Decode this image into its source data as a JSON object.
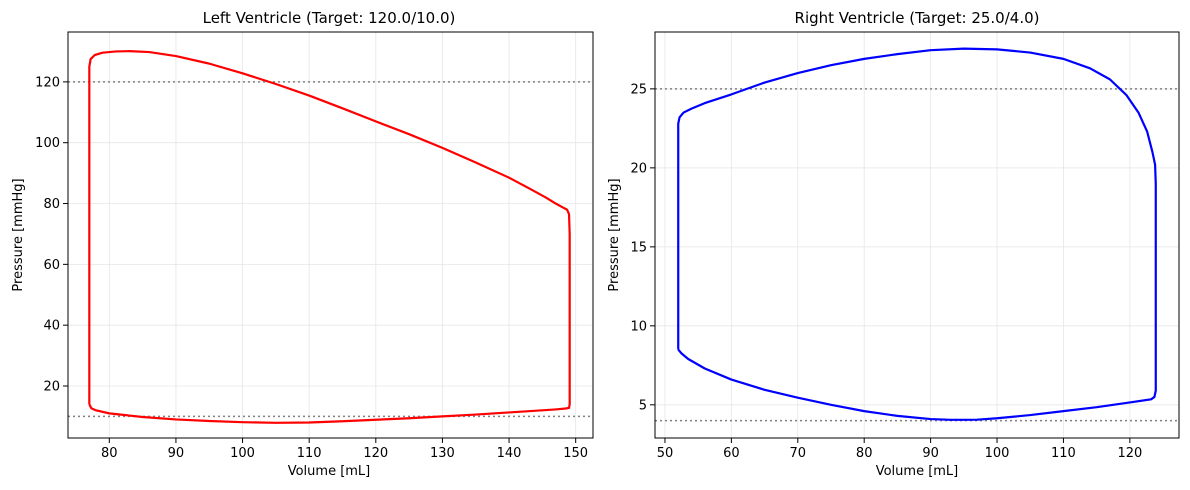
{
  "chart_data": [
    {
      "type": "line",
      "title": "Left Ventricle (Target: 120.0/10.0)",
      "xlabel": "Volume [mL]",
      "ylabel": "Pressure [mmHg]",
      "xlim": [
        73.8,
        152.6
      ],
      "ylim": [
        2.9,
        136.4
      ],
      "xticks": [
        80,
        90,
        100,
        110,
        120,
        130,
        140,
        150
      ],
      "yticks": [
        20,
        40,
        60,
        80,
        100,
        120
      ],
      "grid": true,
      "reference_lines": [
        120,
        10
      ],
      "reference_color": "#808080",
      "series": [
        {
          "color": "#ff0000",
          "x": [
            77.0,
            77.0,
            77.0,
            77.0,
            77.0,
            77.2,
            77.8,
            79.0,
            81.0,
            83.0,
            86.0,
            90.0,
            95.0,
            100.0,
            105.0,
            110.0,
            115.0,
            120.0,
            125.0,
            130.0,
            135.0,
            140.0,
            143.0,
            145.5,
            147.0,
            148.0,
            148.7,
            149.0,
            149.1,
            149.1,
            149.1,
            149.1,
            149.0,
            148.5,
            147.0,
            145.0,
            140.0,
            135.0,
            130.0,
            125.0,
            120.0,
            115.0,
            110.0,
            105.0,
            100.0,
            95.0,
            90.0,
            85.0,
            80.0,
            78.0,
            77.3,
            77.0
          ],
          "y": [
            14.0,
            40.0,
            80.0,
            120.0,
            125.0,
            127.5,
            128.8,
            129.6,
            130.0,
            130.1,
            129.8,
            128.5,
            126.0,
            122.8,
            119.3,
            115.5,
            111.3,
            107.0,
            102.8,
            98.3,
            93.5,
            88.5,
            85.0,
            82.0,
            80.0,
            78.8,
            78.0,
            76.5,
            70.0,
            50.0,
            30.0,
            14.0,
            12.8,
            12.6,
            12.3,
            12.0,
            11.3,
            10.6,
            10.0,
            9.4,
            8.9,
            8.4,
            8.0,
            7.9,
            8.1,
            8.5,
            9.0,
            9.8,
            11.0,
            12.0,
            12.7,
            14.0
          ]
        }
      ]
    },
    {
      "type": "line",
      "title": "Right Ventricle (Target: 25.0/4.0)",
      "xlabel": "Volume [mL]",
      "ylabel": "Pressure [mmHg]",
      "xlim": [
        48.5,
        127.4
      ],
      "ylim": [
        2.9,
        28.6
      ],
      "xticks": [
        50,
        60,
        70,
        80,
        90,
        100,
        110,
        120
      ],
      "yticks": [
        5,
        10,
        15,
        20,
        25
      ],
      "grid": true,
      "reference_lines": [
        25,
        4
      ],
      "reference_color": "#808080",
      "series": [
        {
          "color": "#0000ff",
          "x": [
            52.0,
            52.0,
            52.0,
            52.0,
            52.2,
            52.8,
            54.0,
            56.0,
            60.0,
            65.0,
            70.0,
            75.0,
            80.0,
            85.0,
            90.0,
            95.0,
            100.0,
            105.0,
            110.0,
            114.0,
            117.0,
            119.5,
            121.3,
            122.6,
            123.4,
            123.8,
            123.9,
            123.9,
            123.9,
            123.9,
            123.9,
            123.7,
            123.2,
            120.0,
            115.0,
            110.0,
            105.0,
            100.0,
            97.0,
            95.0,
            93.0,
            90.0,
            85.0,
            80.0,
            75.0,
            70.0,
            65.0,
            60.0,
            56.0,
            53.5,
            52.5,
            52.1,
            52.0
          ],
          "y": [
            8.5,
            12.0,
            18.0,
            22.8,
            23.2,
            23.5,
            23.75,
            24.1,
            24.65,
            25.4,
            26.0,
            26.5,
            26.9,
            27.2,
            27.45,
            27.55,
            27.5,
            27.3,
            26.9,
            26.3,
            25.6,
            24.6,
            23.5,
            22.3,
            21.0,
            20.2,
            19.0,
            15.0,
            10.0,
            7.0,
            5.9,
            5.5,
            5.35,
            5.15,
            4.85,
            4.6,
            4.35,
            4.15,
            4.06,
            4.05,
            4.05,
            4.1,
            4.3,
            4.6,
            5.0,
            5.45,
            5.95,
            6.6,
            7.3,
            7.9,
            8.25,
            8.45,
            8.5
          ]
        }
      ]
    }
  ]
}
